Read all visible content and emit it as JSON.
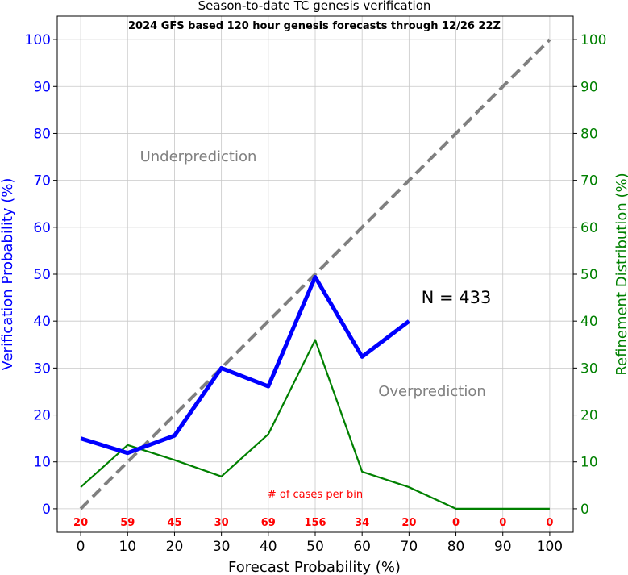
{
  "chart_data": {
    "type": "line",
    "title": "Season-to-date TC genesis verification",
    "subtitle": "2024 GFS based 120 hour genesis forecasts through 12/26 22Z",
    "xlabel": "Forecast Probability (%)",
    "ylabel_left": "Verification Probability (%)",
    "ylabel_right": "Refinement Distribution (%)",
    "xlim": [
      -5,
      105
    ],
    "ylim": [
      -5,
      105
    ],
    "x_ticks": [
      0,
      10,
      20,
      30,
      40,
      50,
      60,
      70,
      80,
      90,
      100
    ],
    "y_ticks": [
      0,
      10,
      20,
      30,
      40,
      50,
      60,
      70,
      80,
      90,
      100
    ],
    "grid": true,
    "series": [
      {
        "role": "verification",
        "axis": "left",
        "color": "#0000ff",
        "x": [
          0,
          10,
          20,
          30,
          40,
          50,
          60,
          70
        ],
        "y": [
          15,
          11.9,
          15.6,
          30,
          26.1,
          49.4,
          32.4,
          40
        ]
      },
      {
        "role": "refinement",
        "axis": "right",
        "color": "#008000",
        "x": [
          0,
          10,
          20,
          30,
          40,
          50,
          60,
          70,
          80,
          90,
          100
        ],
        "y": [
          4.6,
          13.6,
          10.4,
          6.9,
          15.9,
          36,
          7.9,
          4.6,
          0,
          0,
          0
        ]
      },
      {
        "role": "perfect-reliability",
        "axis": "left",
        "color": "#808080",
        "style": "dashed",
        "x": [
          0,
          100
        ],
        "y": [
          0,
          100
        ]
      }
    ],
    "case_counts_label": "# of cases per bin",
    "case_counts": [
      {
        "x": 0,
        "label": "20"
      },
      {
        "x": 10,
        "label": "59"
      },
      {
        "x": 20,
        "label": "45"
      },
      {
        "x": 30,
        "label": "30"
      },
      {
        "x": 40,
        "label": "69"
      },
      {
        "x": 50,
        "label": "156"
      },
      {
        "x": 60,
        "label": "34"
      },
      {
        "x": 70,
        "label": "20"
      },
      {
        "x": 80,
        "label": "0"
      },
      {
        "x": 90,
        "label": "0"
      },
      {
        "x": 100,
        "label": "0"
      }
    ],
    "annotations": {
      "underprediction": "Underprediction",
      "overprediction": "Overprediction",
      "n_label": "N = 433"
    },
    "colors": {
      "left_axis": "#0000ff",
      "right_axis": "#008000",
      "counts": "#ff0000",
      "annotation": "#808080",
      "grid": "#c8c8c8"
    }
  }
}
